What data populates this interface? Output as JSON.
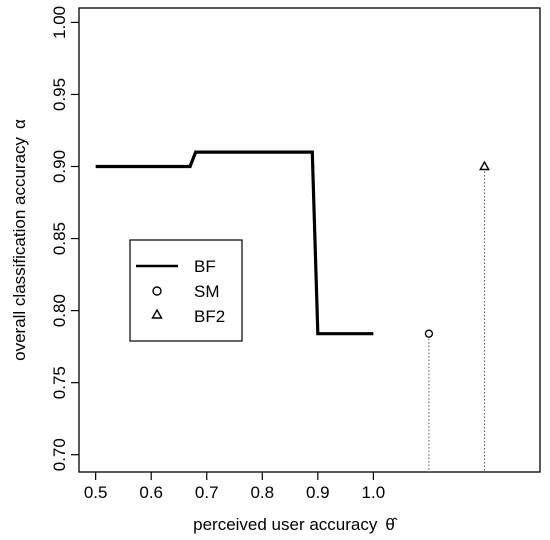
{
  "chart_data": {
    "type": "line",
    "xlabel": "perceived user accuracy",
    "xlabel_symbol": "θ̂",
    "ylabel": "overall classification accuracy",
    "ylabel_symbol": "α",
    "xlim": [
      0.47,
      1.3
    ],
    "ylim": [
      0.688,
      1.01
    ],
    "x_ticks": [
      0.5,
      0.6,
      0.7,
      0.8,
      0.9,
      1.0
    ],
    "x_tick_labels": [
      "0.5",
      "0.6",
      "0.7",
      "0.8",
      "0.9",
      "1.0"
    ],
    "y_ticks": [
      0.7,
      0.75,
      0.8,
      0.85,
      0.9,
      0.95,
      1.0
    ],
    "y_tick_labels": [
      "0.70",
      "0.75",
      "0.80",
      "0.85",
      "0.90",
      "0.95",
      "1.00"
    ],
    "grid": false,
    "legend_position": "left-middle",
    "series": [
      {
        "name": "BF",
        "kind": "line",
        "x": [
          0.5,
          0.67,
          0.68,
          0.89,
          0.9,
          1.0
        ],
        "y": [
          0.9,
          0.9,
          0.91,
          0.91,
          0.784,
          0.784
        ]
      },
      {
        "name": "SM",
        "kind": "point",
        "marker": "circle",
        "x": [
          1.1
        ],
        "y": [
          0.784
        ],
        "drop_line": true
      },
      {
        "name": "BF2",
        "kind": "point",
        "marker": "triangle",
        "x": [
          1.2
        ],
        "y": [
          0.9
        ],
        "drop_line": true
      }
    ]
  }
}
